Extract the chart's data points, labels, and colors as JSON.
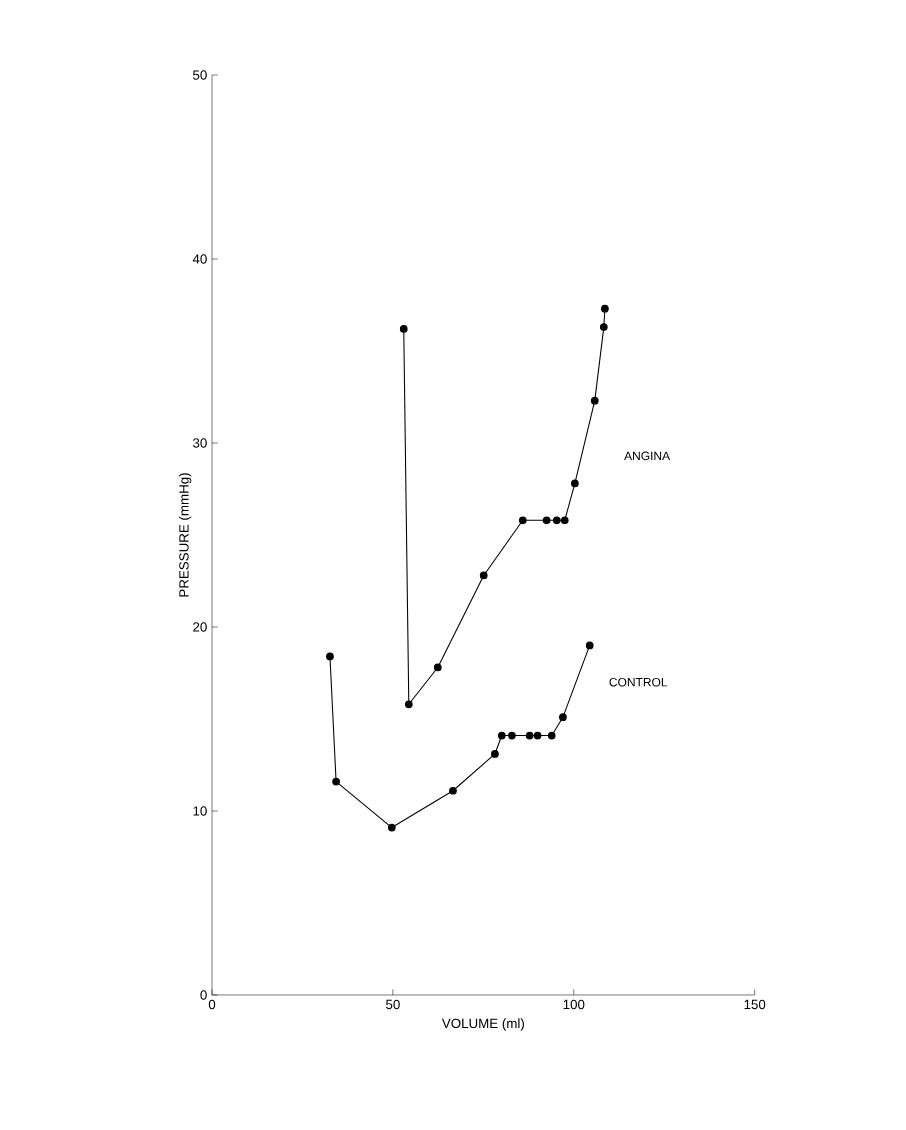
{
  "chart_data": {
    "type": "line",
    "xlabel": "VOLUME (ml)",
    "ylabel": "PRESSURE (mmHg)",
    "xlim": [
      0,
      150
    ],
    "ylim": [
      0,
      50
    ],
    "xticks": [
      0,
      50,
      100,
      150
    ],
    "yticks": [
      0,
      10,
      20,
      30,
      40,
      50
    ],
    "marker": "circle",
    "legend": false,
    "grid": false,
    "series": [
      {
        "name": "ANGINA",
        "color": "#000000",
        "x": [
          53,
          54.4,
          62.4,
          75.1,
          85.9,
          92.5,
          95.3,
          97.5,
          100.3,
          105.8,
          108.3,
          108.6
        ],
        "values": [
          36.2,
          15.8,
          17.8,
          22.8,
          25.8,
          25.8,
          25.8,
          25.8,
          27.8,
          32.3,
          36.3,
          37.3
        ]
      },
      {
        "name": "CONTROL",
        "color": "#000000",
        "x": [
          32.6,
          34.3,
          49.7,
          66.6,
          78.2,
          80.1,
          82.9,
          87.8,
          90,
          93.9,
          97,
          104.4
        ],
        "values": [
          18.4,
          11.6,
          9.1,
          11.1,
          13.1,
          14.1,
          14.1,
          14.1,
          14.1,
          14.1,
          15.1,
          19.0
        ]
      }
    ]
  }
}
